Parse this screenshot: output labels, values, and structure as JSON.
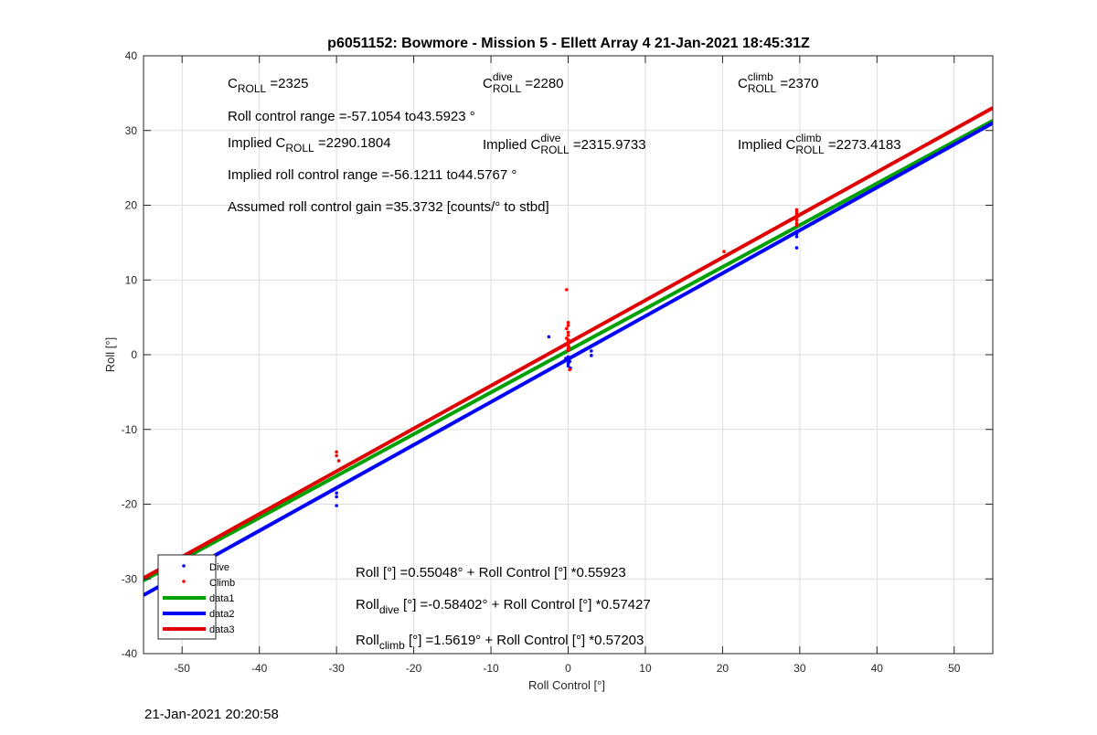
{
  "chart_data": {
    "type": "scatter",
    "title": "p6051152: Bowmore - Mission 5 - Ellett Array 4 21-Jan-2021 18:45:31Z",
    "xlabel": "Roll Control [°]",
    "ylabel": "Roll [°]",
    "xlim": [
      -55,
      55
    ],
    "ylim": [
      -40,
      40
    ],
    "xticks": [
      -50,
      -40,
      -30,
      -20,
      -10,
      0,
      10,
      20,
      30,
      40,
      50
    ],
    "yticks": [
      -40,
      -30,
      -20,
      -10,
      0,
      10,
      20,
      30,
      40
    ],
    "grid": true,
    "legend_placement": "bottom-left",
    "series": [
      {
        "name": "Dive",
        "kind": "scatter",
        "color": "#0000ff",
        "points": [
          [
            -49.8,
            -28.7
          ],
          [
            -30,
            -18.5
          ],
          [
            -30,
            -19
          ],
          [
            -30,
            -20.2
          ],
          [
            -2.5,
            2.4
          ],
          [
            -0.3,
            -0.5
          ],
          [
            0,
            -0.8
          ],
          [
            0,
            -1.2
          ],
          [
            0,
            -1.5
          ],
          [
            0.2,
            -0.9
          ],
          [
            0.3,
            -1.8
          ],
          [
            0,
            -0.3
          ],
          [
            0.1,
            -1.0
          ],
          [
            3,
            0.5
          ],
          [
            3,
            -0.1
          ],
          [
            29.6,
            16.2
          ],
          [
            29.6,
            15.8
          ],
          [
            29.6,
            16.5
          ],
          [
            29.6,
            14.3
          ]
        ]
      },
      {
        "name": "Climb",
        "kind": "scatter",
        "color": "#ff0000",
        "points": [
          [
            -47.3,
            -27.8
          ],
          [
            -30,
            -13
          ],
          [
            -30,
            -13.5
          ],
          [
            -29.7,
            -14.2
          ],
          [
            -0.2,
            8.7
          ],
          [
            0,
            4.3
          ],
          [
            0,
            3.9
          ],
          [
            -0.2,
            3.5
          ],
          [
            0,
            3.0
          ],
          [
            0,
            2.6
          ],
          [
            -0.2,
            2.2
          ],
          [
            0,
            2.0
          ],
          [
            0,
            1.8
          ],
          [
            0,
            1.6
          ],
          [
            0,
            1.4
          ],
          [
            0,
            1.2
          ],
          [
            0.1,
            1.0
          ],
          [
            0,
            0.8
          ],
          [
            0,
            0.6
          ],
          [
            0.2,
            -2.0
          ],
          [
            20.2,
            13.8
          ],
          [
            29.6,
            19.4
          ],
          [
            29.6,
            19.1
          ],
          [
            29.6,
            18.8
          ],
          [
            29.6,
            18.4
          ],
          [
            29.6,
            18.0
          ],
          [
            29.6,
            17.6
          ],
          [
            29.6,
            17.3
          ]
        ]
      },
      {
        "name": "data1",
        "kind": "line",
        "color": "#00a000",
        "intercept": 0.55048,
        "slope": 0.55923
      },
      {
        "name": "data2",
        "kind": "line",
        "color": "#0000ff",
        "intercept": -0.58402,
        "slope": 0.57427
      },
      {
        "name": "data3",
        "kind": "line",
        "color": "#e00000",
        "intercept": 1.5619,
        "slope": 0.57203
      }
    ],
    "annotations": [
      {
        "id": "c-roll",
        "parts": [
          [
            "C",
            ""
          ],
          [
            "ROLL",
            "sub"
          ],
          [
            " =2325",
            ""
          ]
        ]
      },
      {
        "id": "c-roll-dive",
        "parts": [
          [
            "C",
            ""
          ],
          [
            "dive",
            "sup"
          ],
          [
            "ROLL",
            "sub"
          ],
          [
            " =2280",
            ""
          ]
        ]
      },
      {
        "id": "c-roll-climb",
        "parts": [
          [
            "C",
            ""
          ],
          [
            "climb",
            "sup"
          ],
          [
            "ROLL",
            "sub"
          ],
          [
            " =2370",
            ""
          ]
        ]
      },
      {
        "id": "roll-control-range",
        "parts": [
          [
            "Roll control range =-57.1054 to43.5923 °",
            ""
          ]
        ]
      },
      {
        "id": "implied-c-roll",
        "parts": [
          [
            "Implied C",
            ""
          ],
          [
            "ROLL",
            "sub"
          ],
          [
            " =2290.1804",
            ""
          ]
        ]
      },
      {
        "id": "implied-c-roll-dive",
        "parts": [
          [
            "Implied C",
            ""
          ],
          [
            "dive",
            "sup"
          ],
          [
            "ROLL",
            "sub"
          ],
          [
            " =2315.9733",
            ""
          ]
        ]
      },
      {
        "id": "implied-c-roll-climb",
        "parts": [
          [
            "Implied C",
            ""
          ],
          [
            "climb",
            "sup"
          ],
          [
            "ROLL",
            "sub"
          ],
          [
            " =2273.4183",
            ""
          ]
        ]
      },
      {
        "id": "implied-roll-range",
        "parts": [
          [
            "Implied roll control range =-56.1211 to44.5767 °",
            ""
          ]
        ]
      },
      {
        "id": "assumed-gain",
        "parts": [
          [
            "Assumed roll control gain =35.3732 [counts/° to stbd]",
            ""
          ]
        ]
      },
      {
        "id": "fit-all",
        "parts": [
          [
            "Roll [°] =0.55048° + Roll Control [°] *0.55923",
            ""
          ]
        ]
      },
      {
        "id": "fit-dive",
        "parts": [
          [
            "Roll",
            ""
          ],
          [
            "dive",
            "sub"
          ],
          [
            " [°] =-0.58402° + Roll Control [°] *0.57427",
            ""
          ]
        ]
      },
      {
        "id": "fit-climb",
        "parts": [
          [
            "Roll",
            ""
          ],
          [
            "climb",
            "sub"
          ],
          [
            " [°] =1.5619° + Roll Control [°] *0.57203",
            ""
          ]
        ]
      }
    ]
  },
  "footer_timestamp": "21-Jan-2021 20:20:58"
}
